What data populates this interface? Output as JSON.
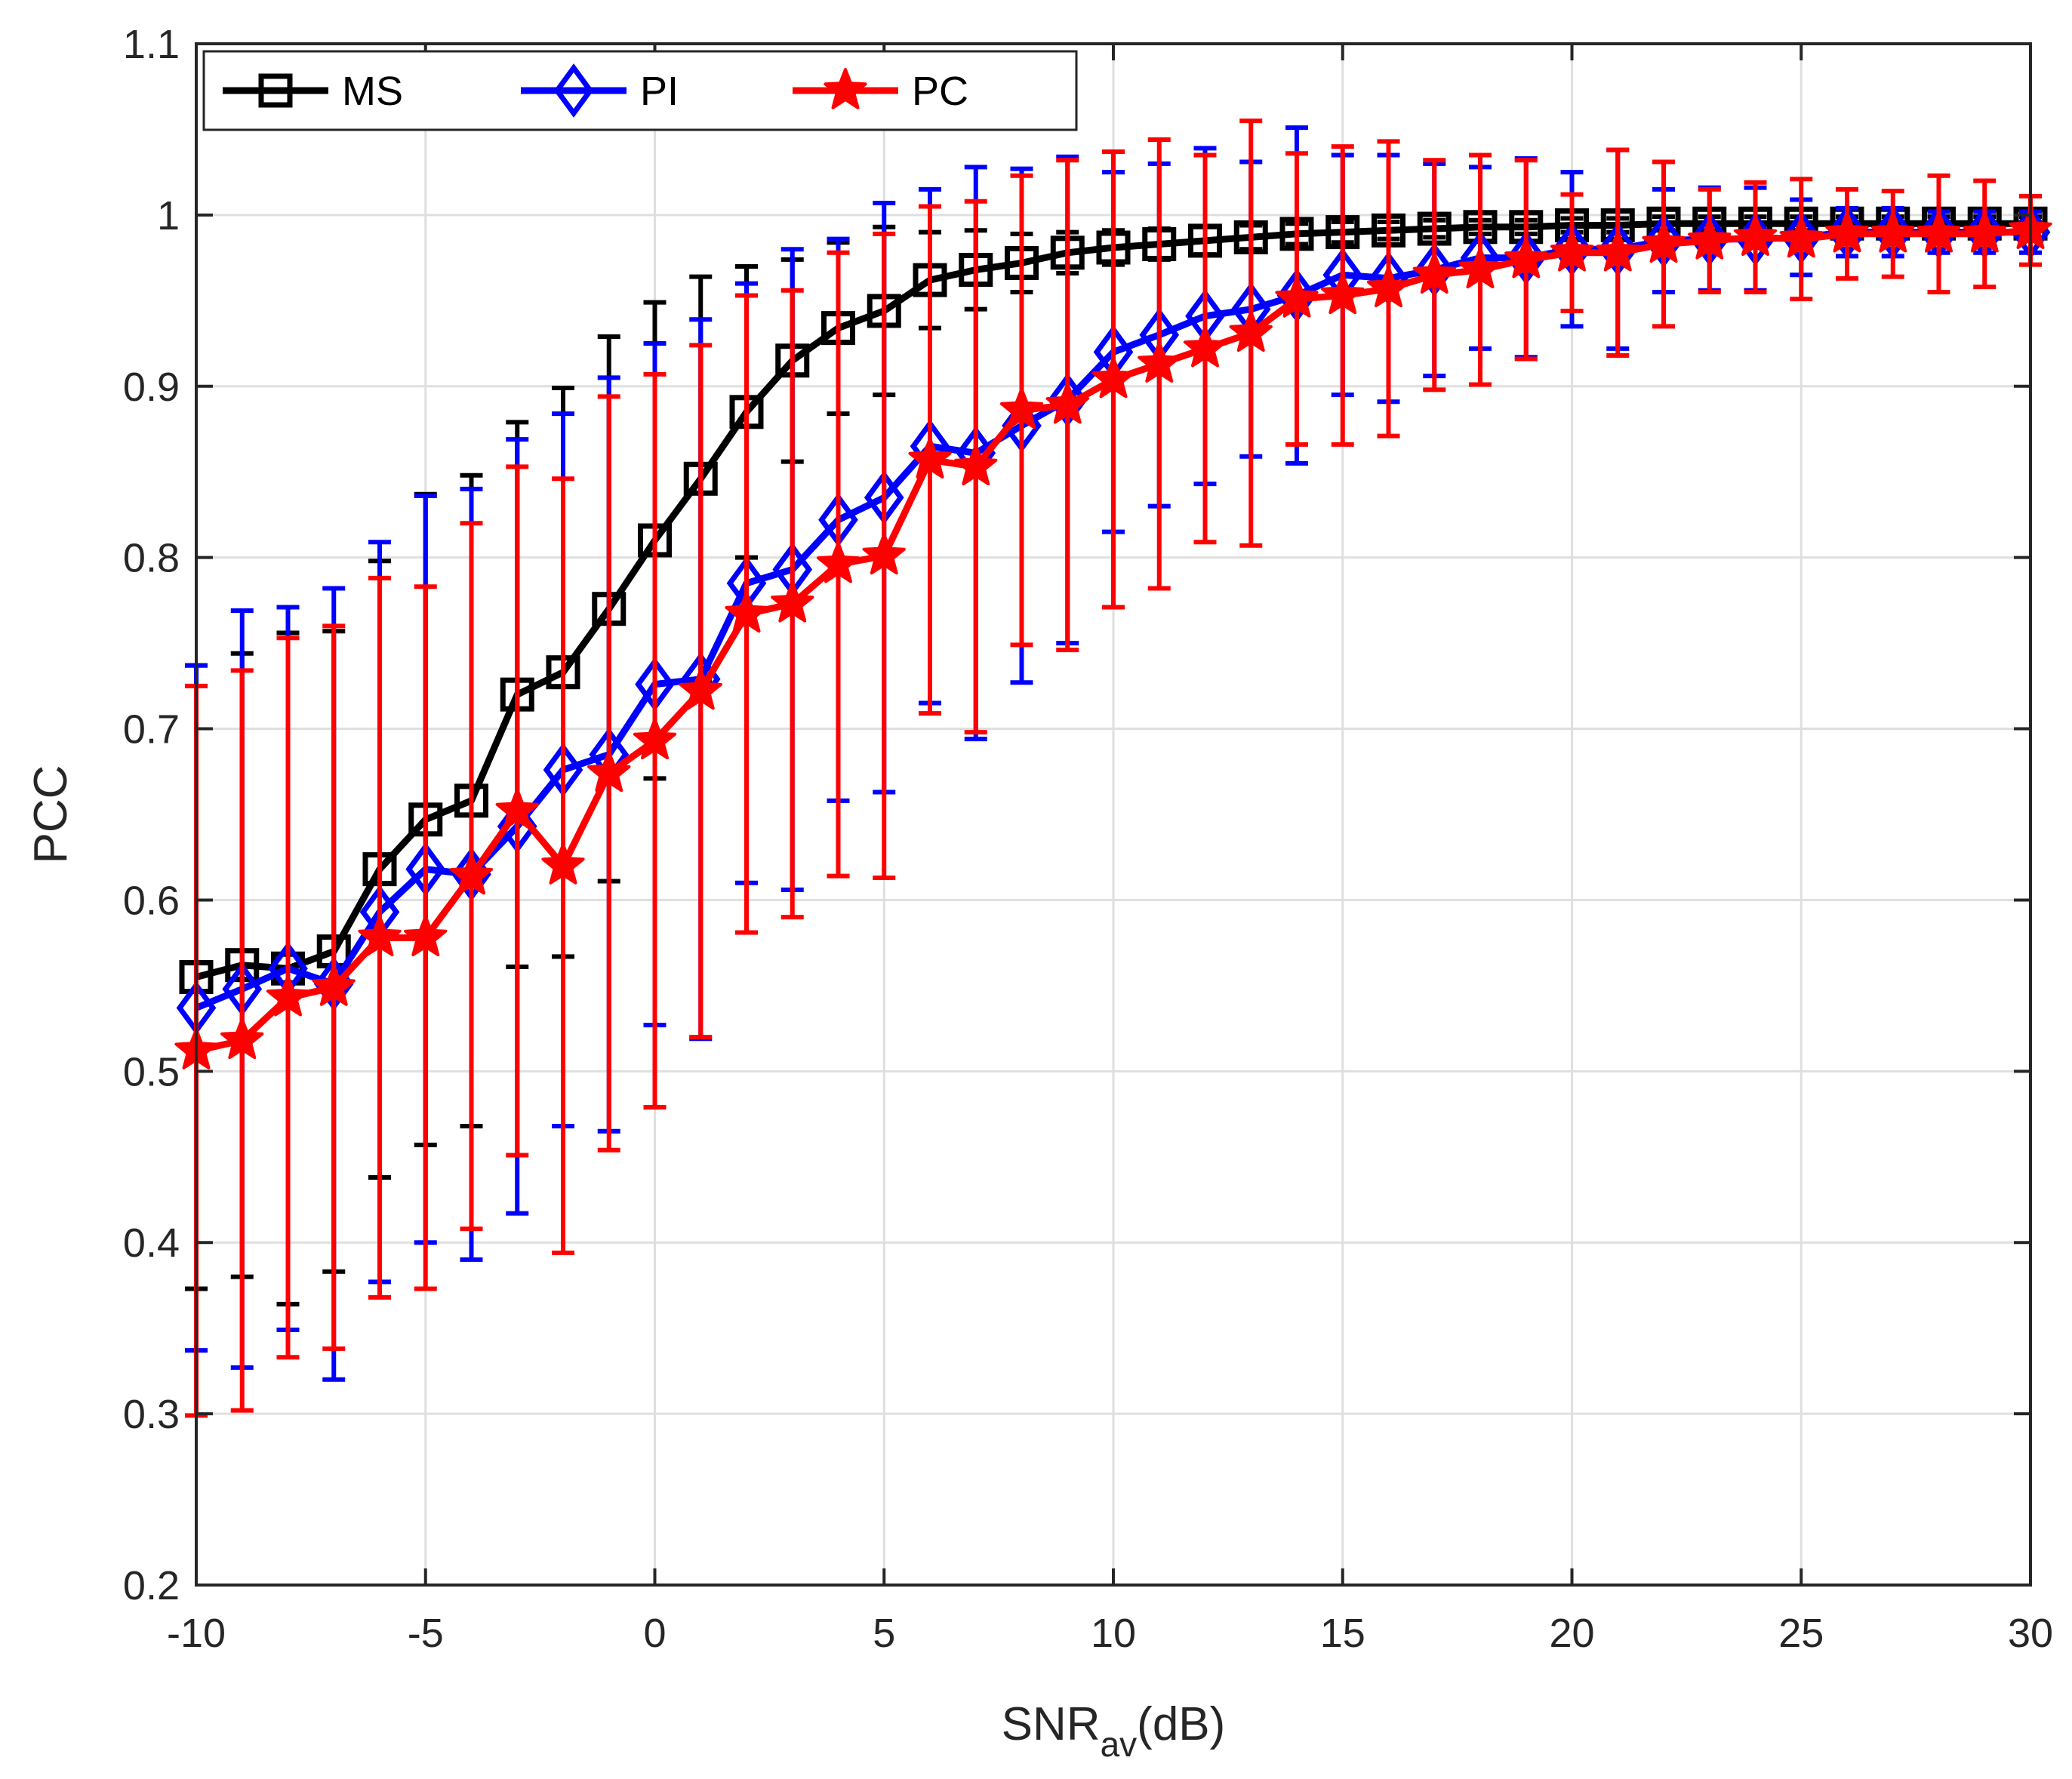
{
  "chart_data": {
    "type": "line",
    "title": "",
    "xlabel": "SNR",
    "xlabel_subscript": "av",
    "xlabel_suffix": "(dB)",
    "ylabel": "PCC",
    "xlim": [
      -10,
      30
    ],
    "ylim": [
      0.2,
      1.1
    ],
    "grid": true,
    "legend_position": "top-left",
    "x_ticks": [
      -10,
      -5,
      0,
      5,
      10,
      15,
      20,
      25,
      30
    ],
    "x_tick_labels": [
      "-10",
      "-5",
      "0",
      "5",
      "10",
      "15",
      "20",
      "25",
      "30"
    ],
    "y_ticks": [
      0.2,
      0.3,
      0.4,
      0.5,
      0.6,
      0.7,
      0.8,
      0.9,
      1.0,
      1.1
    ],
    "y_tick_labels": [
      "0.2",
      "0.3",
      "0.4",
      "0.5",
      "0.6",
      "0.7",
      "0.8",
      "0.9",
      "1",
      "1.1"
    ],
    "x": [
      -10,
      -9,
      -8,
      -7,
      -6,
      -5,
      -4,
      -3,
      -2,
      -1,
      0,
      1,
      2,
      3,
      4,
      5,
      6,
      7,
      8,
      9,
      10,
      11,
      12,
      13,
      14,
      15,
      16,
      17,
      18,
      19,
      20,
      21,
      22,
      23,
      24,
      25,
      26,
      27,
      28,
      29,
      30
    ],
    "series": [
      {
        "name": "MS",
        "color": "#000000",
        "marker": "square",
        "values": [
          0.555,
          0.562,
          0.56,
          0.57,
          0.618,
          0.647,
          0.658,
          0.72,
          0.733,
          0.77,
          0.81,
          0.846,
          0.885,
          0.915,
          0.934,
          0.944,
          0.962,
          0.968,
          0.972,
          0.978,
          0.981,
          0.983,
          0.985,
          0.987,
          0.989,
          0.99,
          0.991,
          0.992,
          0.993,
          0.993,
          0.994,
          0.994,
          0.995,
          0.995,
          0.995,
          0.995,
          0.995,
          0.995,
          0.995,
          0.995,
          0.995
        ],
        "err": [
          0.182,
          0.182,
          0.196,
          0.187,
          0.18,
          0.19,
          0.19,
          0.159,
          0.166,
          0.159,
          0.139,
          0.118,
          0.085,
          0.059,
          0.05,
          0.049,
          0.028,
          0.023,
          0.017,
          0.012,
          0.01,
          0.009,
          0.008,
          0.007,
          0.006,
          0.006,
          0.005,
          0.005,
          0.004,
          0.004,
          0.004,
          0.004,
          0.004,
          0.004,
          0.004,
          0.004,
          0.004,
          0.004,
          0.004,
          0.004,
          0.004
        ]
      },
      {
        "name": "PI",
        "color": "#0000ff",
        "marker": "diamond",
        "values": [
          0.537,
          0.548,
          0.56,
          0.551,
          0.593,
          0.618,
          0.615,
          0.643,
          0.676,
          0.685,
          0.726,
          0.729,
          0.785,
          0.793,
          0.822,
          0.835,
          0.865,
          0.861,
          0.877,
          0.892,
          0.92,
          0.93,
          0.941,
          0.945,
          0.953,
          0.965,
          0.963,
          0.968,
          0.975,
          0.975,
          0.98,
          0.98,
          0.985,
          0.986,
          0.986,
          0.987,
          0.99,
          0.99,
          0.99,
          0.99,
          0.99
        ],
        "err": [
          0.2,
          0.221,
          0.211,
          0.231,
          0.216,
          0.218,
          0.225,
          0.226,
          0.208,
          0.22,
          0.199,
          0.21,
          0.175,
          0.187,
          0.164,
          0.172,
          0.15,
          0.167,
          0.15,
          0.142,
          0.105,
          0.1,
          0.098,
          0.086,
          0.098,
          0.07,
          0.072,
          0.062,
          0.053,
          0.058,
          0.045,
          0.058,
          0.03,
          0.03,
          0.03,
          0.022,
          0.014,
          0.014,
          0.012,
          0.012,
          0.012
        ]
      },
      {
        "name": "PC",
        "color": "#ff0000",
        "marker": "star",
        "values": [
          0.512,
          0.518,
          0.543,
          0.549,
          0.578,
          0.578,
          0.614,
          0.652,
          0.62,
          0.674,
          0.693,
          0.722,
          0.767,
          0.773,
          0.796,
          0.801,
          0.857,
          0.853,
          0.886,
          0.889,
          0.904,
          0.913,
          0.922,
          0.931,
          0.951,
          0.953,
          0.957,
          0.965,
          0.968,
          0.974,
          0.978,
          0.978,
          0.983,
          0.985,
          0.987,
          0.986,
          0.989,
          0.989,
          0.989,
          0.989,
          0.991
        ],
        "err": [
          0.213,
          0.216,
          0.21,
          0.211,
          0.21,
          0.205,
          0.206,
          0.201,
          0.226,
          0.22,
          0.214,
          0.202,
          0.186,
          0.183,
          0.182,
          0.188,
          0.148,
          0.155,
          0.137,
          0.143,
          0.133,
          0.131,
          0.113,
          0.124,
          0.085,
          0.087,
          0.086,
          0.067,
          0.067,
          0.058,
          0.034,
          0.06,
          0.048,
          0.03,
          0.032,
          0.035,
          0.026,
          0.025,
          0.034,
          0.031,
          0.02
        ]
      }
    ]
  }
}
